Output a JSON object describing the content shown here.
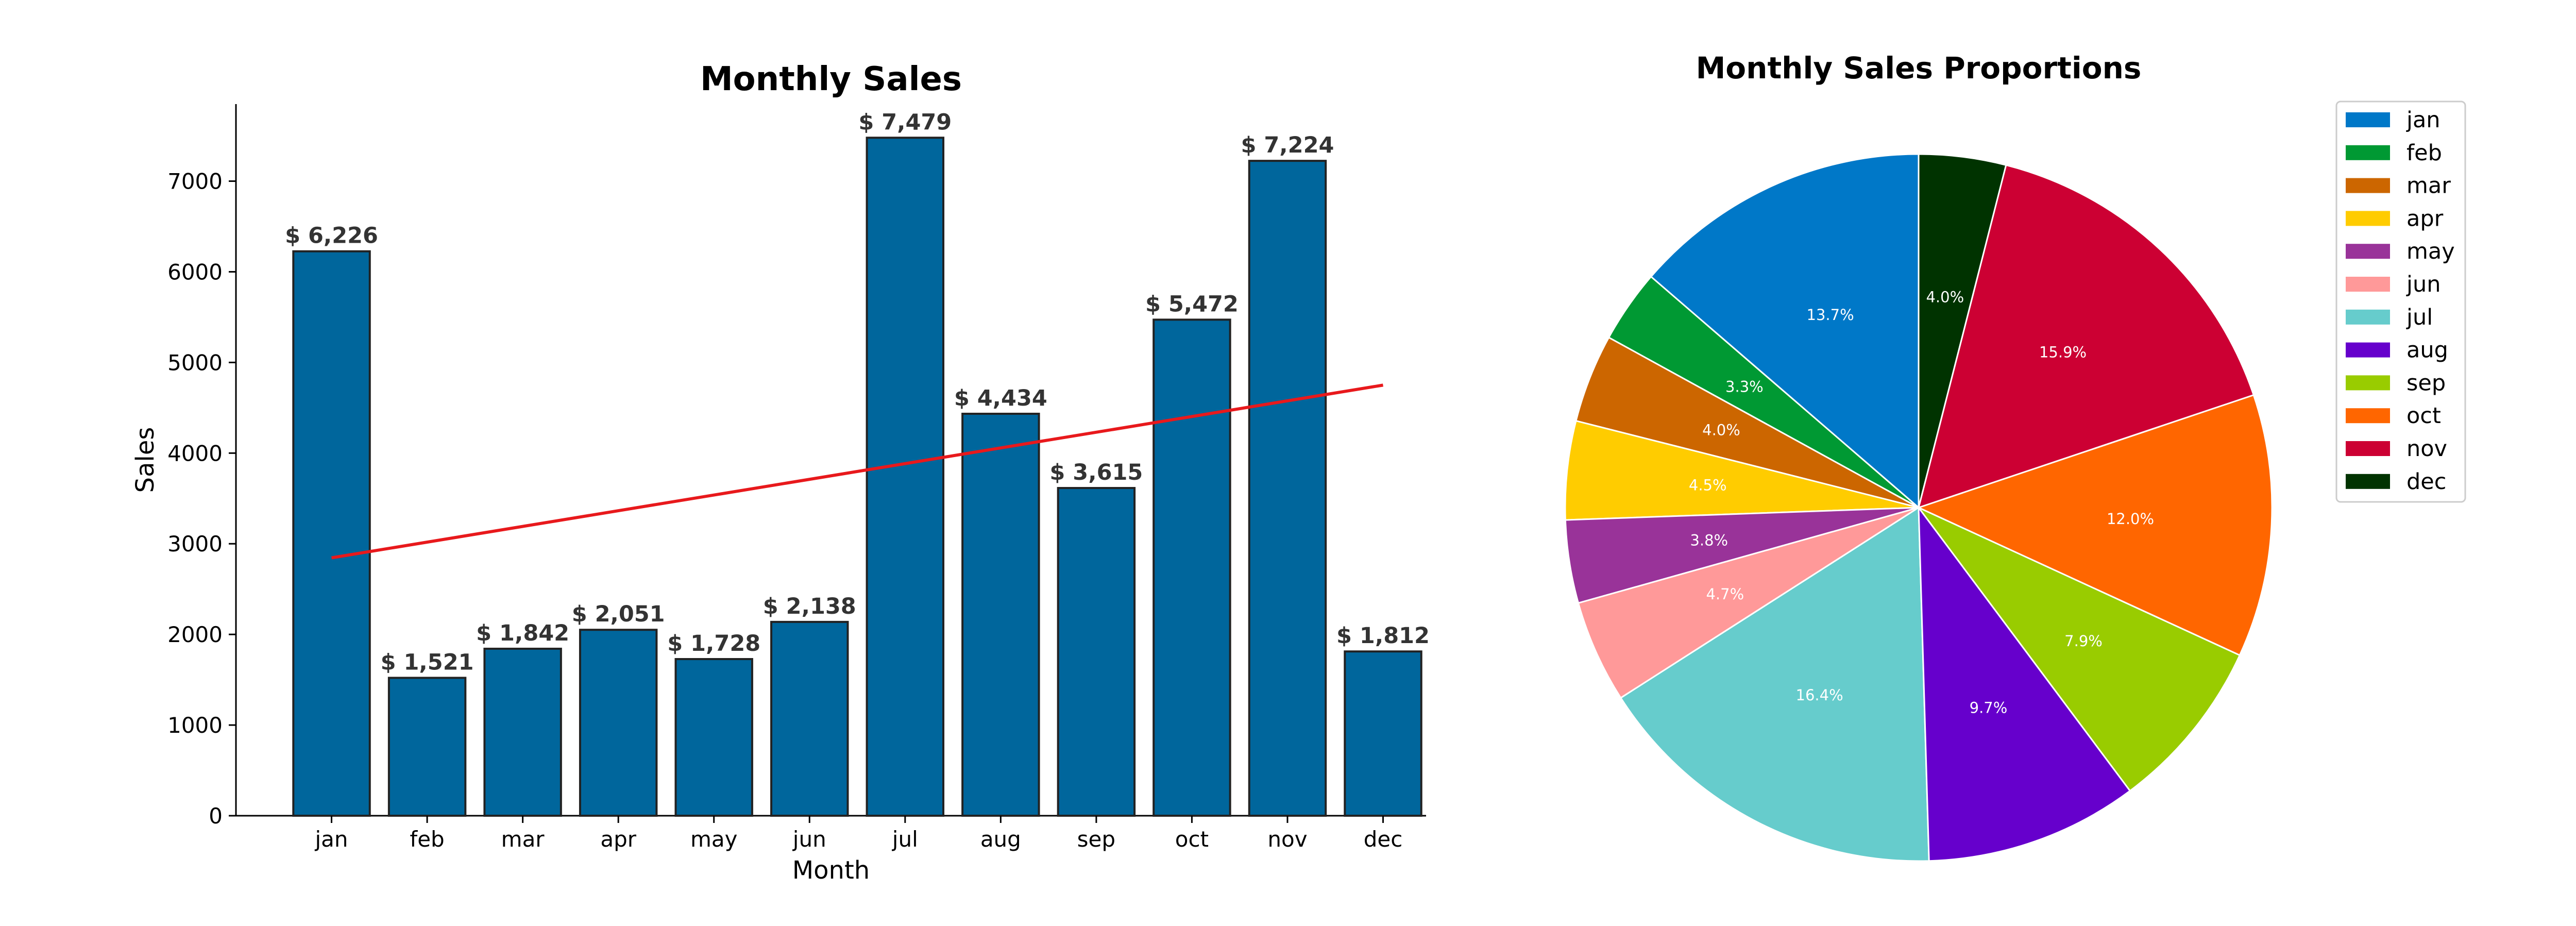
{
  "chart_data": [
    {
      "type": "bar",
      "title": "Monthly Sales",
      "xlabel": "Month",
      "ylabel": "Sales",
      "categories": [
        "jan",
        "feb",
        "mar",
        "apr",
        "may",
        "jun",
        "jul",
        "aug",
        "sep",
        "oct",
        "nov",
        "dec"
      ],
      "values": [
        6226,
        1521,
        1842,
        2051,
        1728,
        2138,
        7479,
        4434,
        3615,
        5472,
        7224,
        1812
      ],
      "value_labels": [
        "$ 6,226",
        "$ 1,521",
        "$ 1,842",
        "$ 2,051",
        "$ 1,728",
        "$ 2,138",
        "$ 7,479",
        "$ 4,434",
        "$ 3,615",
        "$ 5,472",
        "$ 7,224",
        "$ 1,812"
      ],
      "ylim": [
        0,
        7850
      ],
      "yticks": [
        0,
        1000,
        2000,
        3000,
        4000,
        5000,
        6000,
        7000
      ],
      "bar_color": "#00669c",
      "edge_color": "#222222",
      "trendline": {
        "color": "#e8191c",
        "start": 2845,
        "end": 4750
      },
      "grid": false
    },
    {
      "type": "pie",
      "title": "Monthly Sales Proportions",
      "labels": [
        "jan",
        "feb",
        "mar",
        "apr",
        "may",
        "jun",
        "jul",
        "aug",
        "sep",
        "oct",
        "nov",
        "dec"
      ],
      "values": [
        6226,
        1521,
        1842,
        2051,
        1728,
        2138,
        7479,
        4434,
        3615,
        5472,
        7224,
        1812
      ],
      "percent_labels": [
        "13.7%",
        "3.3%",
        "4.0%",
        "4.5%",
        "3.8%",
        "4.7%",
        "16.4%",
        "9.7%",
        "7.9%",
        "12.0%",
        "15.9%",
        "4.0%"
      ],
      "colors": [
        "#0078c8",
        "#009933",
        "#cc6600",
        "#ffcc00",
        "#993399",
        "#ff9999",
        "#66cccc",
        "#6600cc",
        "#99cc00",
        "#ff6600",
        "#cc0033",
        "#003300"
      ],
      "legend_position": "top-right"
    }
  ]
}
